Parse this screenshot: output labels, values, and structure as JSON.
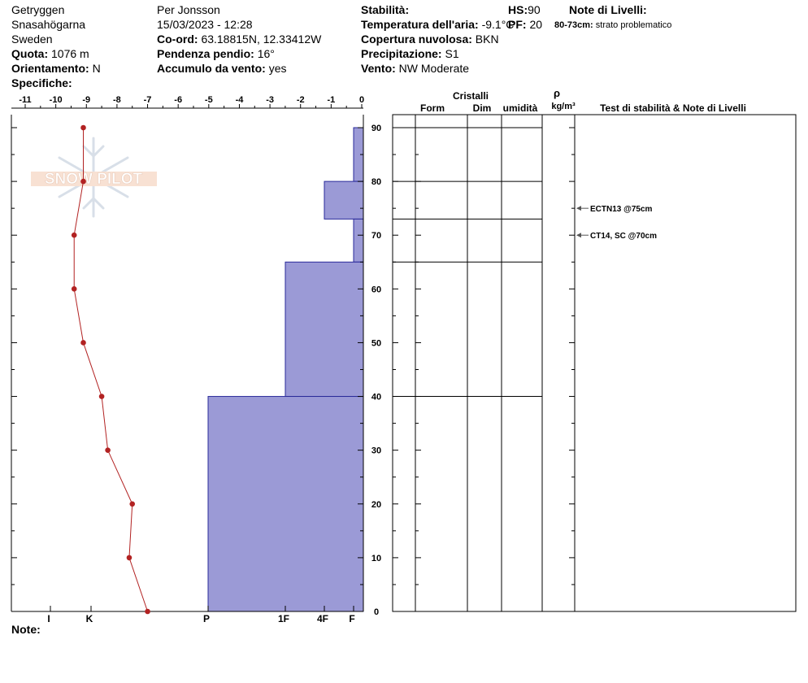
{
  "header": {
    "location": "Getryggen",
    "region": "Snasahögarna",
    "country": "Sweden",
    "quota_label": "Quota:",
    "quota_value": "1076 m",
    "orient_label": "Orientamento:",
    "orient_value": "N",
    "specifiche_label": "Specifiche:",
    "observer": "Per Jonsson",
    "datetime": "15/03/2023 - 12:28",
    "coord_label": "Co-ord:",
    "coord_value": "63.18815N, 12.33412W",
    "pendenza_label": "Pendenza pendio:",
    "pendenza_value": "16°",
    "accumulo_label": "Accumulo da vento:",
    "accumulo_value": "yes",
    "stabilita_label": "Stabilità:",
    "temp_label": "Temperatura dell'aria:",
    "temp_value": "-9.1°C",
    "copertura_label": "Copertura nuvolosa:",
    "copertura_value": "BKN",
    "precip_label": "Precipitazione:",
    "precip_value": "S1",
    "vento_label": "Vento:",
    "vento_value": "NW Moderate",
    "hs_label": "HS:",
    "hs_value": "90",
    "pf_label": "PF:",
    "pf_value": "20",
    "note_livelli_label": "Note di Livelli:",
    "note_livelli_range": "80-73cm:",
    "note_livelli_text": "strato problematico",
    "note_label": "Note:"
  },
  "columns": {
    "cristalli": "Cristalli",
    "form": "Form",
    "dim": "Dim",
    "umidita": "umidità",
    "rho": "ρ",
    "rho_unit": "kg/m³",
    "test": "Test di stabilità & Note di Livelli"
  },
  "watermark": "SNOW PILOT",
  "chart_data": {
    "type": "line",
    "temp_axis_ticks": [
      "-11",
      "-10",
      "-9",
      "-8",
      "-7",
      "-6",
      "-5",
      "-4",
      "-3",
      "-2",
      "-1",
      "0"
    ],
    "temp_range": [
      -11,
      0
    ],
    "height_range": [
      0,
      90
    ],
    "height_ticks": [
      "0",
      "10",
      "20",
      "30",
      "40",
      "50",
      "60",
      "70",
      "80",
      "90"
    ],
    "hardness_labels": [
      "I",
      "K",
      "P",
      "1F",
      "4F",
      "F"
    ],
    "temperature_profile": {
      "height": [
        90,
        80,
        70,
        60,
        50,
        40,
        30,
        20,
        10,
        0
      ],
      "temp": [
        -9.1,
        -9.1,
        -9.4,
        -9.4,
        -9.1,
        -8.5,
        -8.3,
        -7.5,
        -7.6,
        -7.0
      ]
    },
    "hardness_profile": [
      {
        "top": 90,
        "bottom": 80,
        "hardness": "F"
      },
      {
        "top": 80,
        "bottom": 73,
        "hardness": "4F"
      },
      {
        "top": 73,
        "bottom": 65,
        "hardness": "F"
      },
      {
        "top": 65,
        "bottom": 40,
        "hardness": "1F"
      },
      {
        "top": 40,
        "bottom": 0,
        "hardness": "P"
      }
    ],
    "layer_boundaries": [
      90,
      80,
      73,
      65,
      40
    ],
    "stability_tests": [
      {
        "text": "ECTN13 @75cm",
        "height": 75
      },
      {
        "text": "CT14, SC @70cm",
        "height": 70
      }
    ],
    "colors": {
      "hardness_fill": "#9b9ad6",
      "hardness_stroke": "#2a2a9a",
      "temp_line": "#b22222"
    }
  }
}
